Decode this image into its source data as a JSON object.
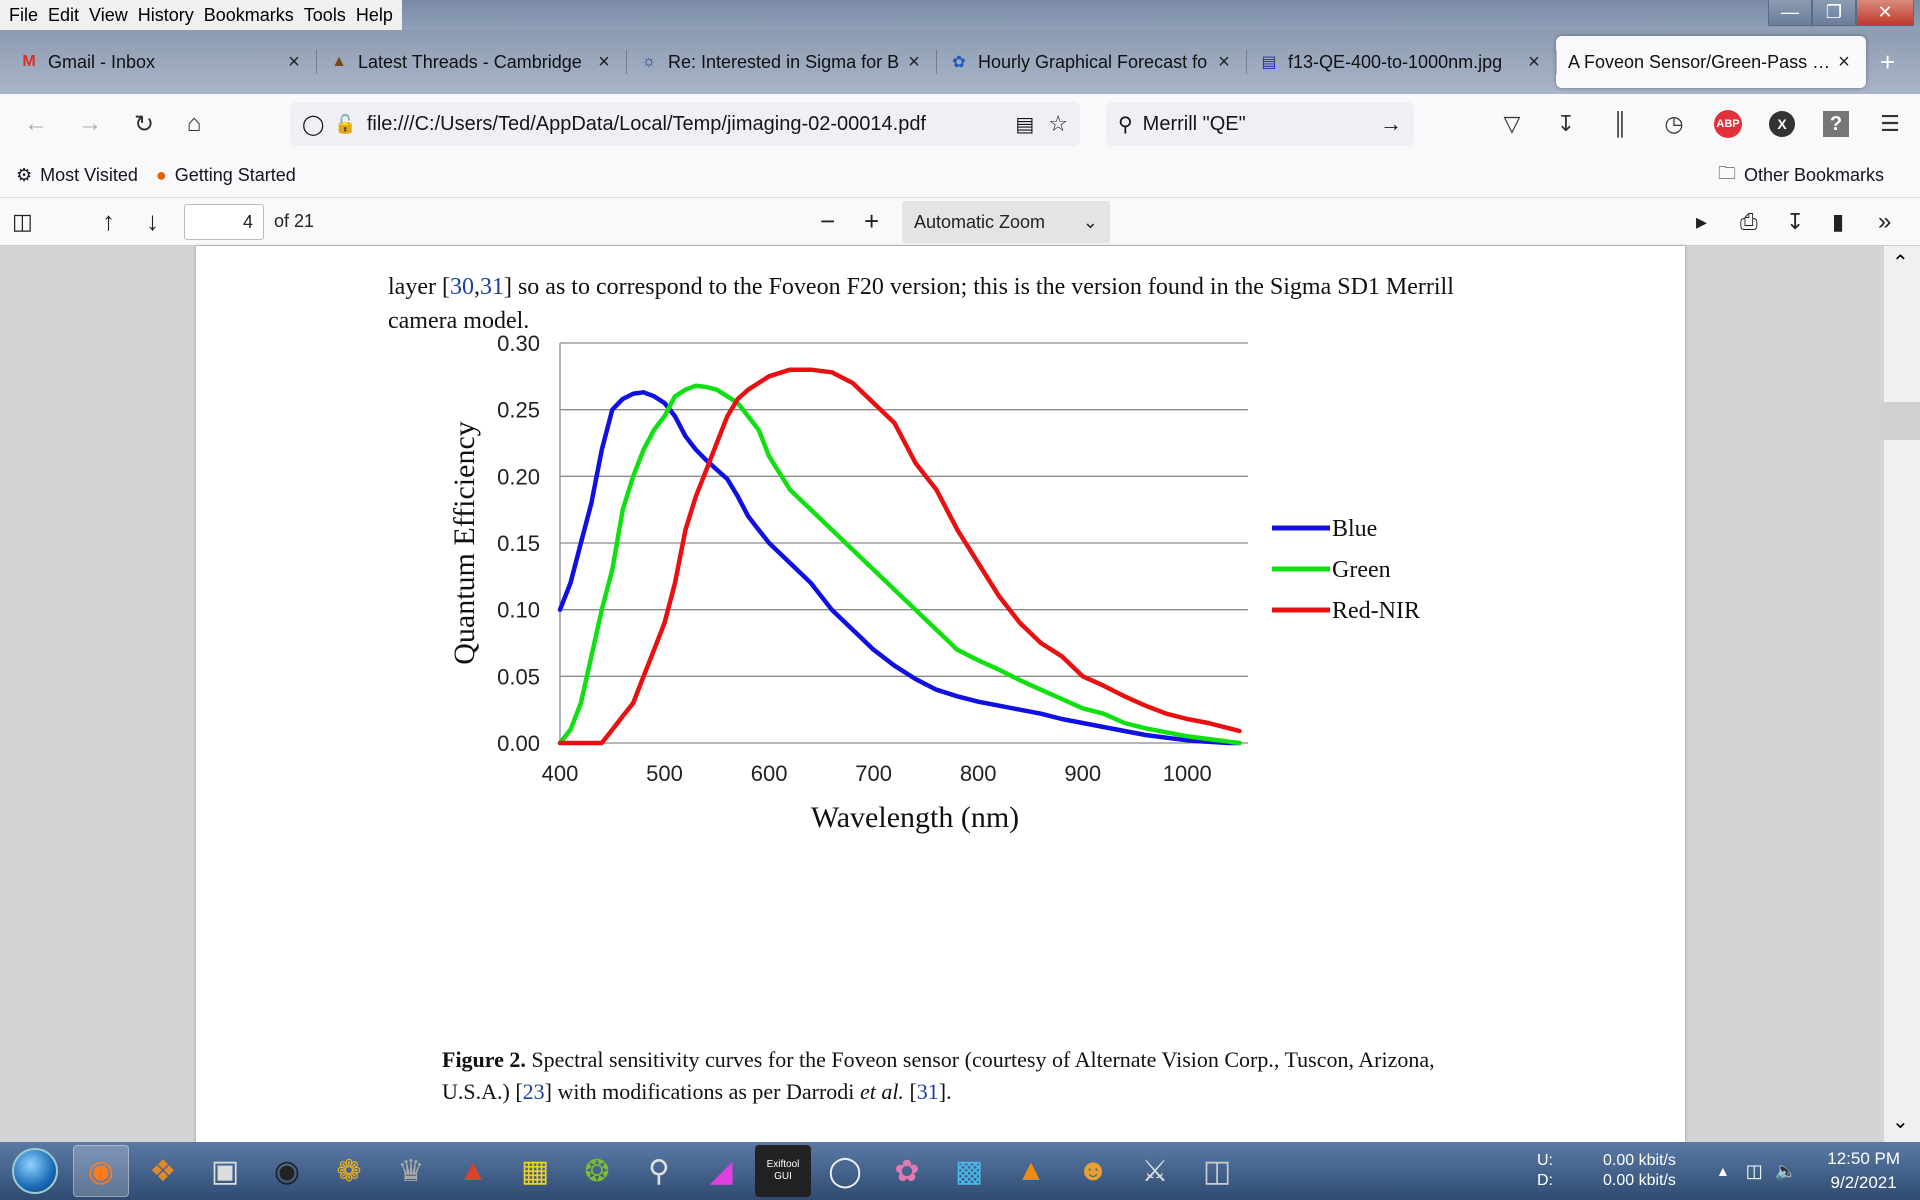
{
  "menubar": {
    "items": [
      "File",
      "Edit",
      "View",
      "History",
      "Bookmarks",
      "Tools",
      "Help"
    ]
  },
  "tabs": [
    {
      "label": "Gmail - Inbox",
      "icon": "gmail-icon"
    },
    {
      "label": "Latest Threads - Cambridge",
      "icon": "forum-icon"
    },
    {
      "label": "Re: Interested in Sigma for B",
      "icon": "forum-icon"
    },
    {
      "label": "Hourly Graphical Forecast fo",
      "icon": "weather-icon"
    },
    {
      "label": "f13-QE-400-to-1000nm.jpg",
      "icon": "image-icon"
    },
    {
      "label": "A Foveon Sensor/Green-Pass Filt",
      "icon": "pdf-icon",
      "active": true
    }
  ],
  "navbar": {
    "url": "file:///C:/Users/Ted/AppData/Local/Temp/jimaging-02-00014.pdf",
    "search_value": "Merrill \"QE\""
  },
  "bookmarks": {
    "items": [
      "Most Visited",
      "Getting Started"
    ],
    "other": "Other Bookmarks"
  },
  "pdf_toolbar": {
    "page_number": "4",
    "page_total": "of 21",
    "zoom": "Automatic Zoom"
  },
  "document": {
    "para_pre": "layer [",
    "ref_a": "30",
    "comma": ",",
    "ref_b": "31",
    "para_post": "] so as to correspond to the Foveon F20 version; this is the version found in the Sigma SD1 Merrill camera model.",
    "caption_label": "Figure 2.",
    "caption_text_1": " Spectral sensitivity curves for the Foveon sensor (courtesy of Alternate Vision Corp., Tuscon, Arizona, U.S.A.) [",
    "caption_ref_1": "23",
    "caption_text_2": "] with modifications as per Darrodi ",
    "caption_etal": "et al.",
    "caption_text_3": " [",
    "caption_ref_2": "31",
    "caption_text_4": "]."
  },
  "chart_data": {
    "type": "line",
    "xlabel": "Wavelength (nm)",
    "ylabel": "Quantum Efficiency",
    "xlim": [
      400,
      1060
    ],
    "ylim": [
      0,
      0.3
    ],
    "x_ticks": [
      400,
      500,
      600,
      700,
      800,
      900,
      1000
    ],
    "y_ticks": [
      "0.00",
      "0.05",
      "0.10",
      "0.15",
      "0.20",
      "0.25",
      "0.30"
    ],
    "grid": "horizontal",
    "legend_position": "right",
    "series": [
      {
        "name": "Blue",
        "color": "#1010e0",
        "x": [
          400,
          410,
          420,
          430,
          440,
          450,
          460,
          470,
          480,
          490,
          500,
          510,
          520,
          530,
          540,
          550,
          560,
          570,
          580,
          590,
          600,
          620,
          640,
          660,
          680,
          700,
          720,
          740,
          760,
          780,
          800,
          820,
          840,
          860,
          880,
          900,
          920,
          940,
          960,
          980,
          1000,
          1020,
          1040,
          1050
        ],
        "y": [
          0.1,
          0.12,
          0.15,
          0.18,
          0.22,
          0.25,
          0.258,
          0.262,
          0.263,
          0.26,
          0.255,
          0.245,
          0.23,
          0.22,
          0.212,
          0.205,
          0.198,
          0.185,
          0.17,
          0.16,
          0.15,
          0.135,
          0.12,
          0.1,
          0.085,
          0.07,
          0.058,
          0.048,
          0.04,
          0.035,
          0.031,
          0.028,
          0.025,
          0.022,
          0.018,
          0.015,
          0.012,
          0.009,
          0.006,
          0.004,
          0.002,
          0.001,
          0.0,
          0.0
        ]
      },
      {
        "name": "Green",
        "color": "#10e010",
        "x": [
          400,
          410,
          420,
          430,
          440,
          450,
          460,
          470,
          480,
          490,
          500,
          510,
          520,
          530,
          540,
          550,
          560,
          570,
          580,
          590,
          600,
          620,
          640,
          660,
          680,
          700,
          720,
          740,
          760,
          780,
          800,
          820,
          840,
          860,
          880,
          900,
          920,
          940,
          960,
          980,
          1000,
          1020,
          1040,
          1050
        ],
        "y": [
          0.0,
          0.01,
          0.03,
          0.065,
          0.1,
          0.13,
          0.175,
          0.2,
          0.22,
          0.235,
          0.245,
          0.26,
          0.265,
          0.268,
          0.267,
          0.265,
          0.26,
          0.255,
          0.245,
          0.235,
          0.215,
          0.19,
          0.175,
          0.16,
          0.145,
          0.13,
          0.115,
          0.1,
          0.085,
          0.07,
          0.062,
          0.055,
          0.047,
          0.04,
          0.033,
          0.026,
          0.022,
          0.015,
          0.011,
          0.008,
          0.005,
          0.003,
          0.001,
          0.0
        ]
      },
      {
        "name": "Red-NIR",
        "color": "#e81010",
        "x": [
          400,
          410,
          420,
          430,
          440,
          450,
          460,
          470,
          480,
          490,
          500,
          510,
          520,
          530,
          540,
          550,
          560,
          570,
          580,
          590,
          600,
          620,
          640,
          660,
          680,
          700,
          720,
          740,
          760,
          780,
          800,
          820,
          840,
          860,
          880,
          900,
          920,
          940,
          960,
          980,
          1000,
          1020,
          1040,
          1050
        ],
        "y": [
          0.0,
          0.0,
          0.0,
          0.0,
          0.0,
          0.01,
          0.02,
          0.03,
          0.05,
          0.07,
          0.09,
          0.12,
          0.16,
          0.185,
          0.205,
          0.225,
          0.245,
          0.258,
          0.265,
          0.27,
          0.275,
          0.28,
          0.28,
          0.278,
          0.27,
          0.255,
          0.24,
          0.21,
          0.19,
          0.16,
          0.135,
          0.11,
          0.09,
          0.075,
          0.065,
          0.05,
          0.043,
          0.035,
          0.028,
          0.022,
          0.018,
          0.015,
          0.011,
          0.009
        ]
      }
    ]
  },
  "taskbar": {
    "apps": [
      "firefox-icon",
      "app-icon",
      "camera-icon",
      "lens-icon",
      "color-wheel-icon",
      "gimp-icon",
      "pdf-reader-icon",
      "ruler-icon",
      "chameleon-icon",
      "hex-search-icon",
      "color-picker-icon",
      "exiftool-icon",
      "magnifier-icon",
      "brain-icon",
      "ftp-icon",
      "vlc-icon",
      "builder-icon",
      "microscope-icon",
      "drive-icon"
    ],
    "exiftool_label": "Exiftool GUI",
    "net_labels": [
      "U:",
      "D:"
    ],
    "net_rates": [
      "0.00 kbit/s",
      "0.00 kbit/s"
    ],
    "time": "12:50 PM",
    "date": "9/2/2021"
  }
}
